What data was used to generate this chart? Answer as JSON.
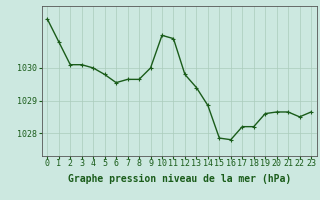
{
  "x": [
    0,
    1,
    2,
    3,
    4,
    5,
    6,
    7,
    8,
    9,
    10,
    11,
    12,
    13,
    14,
    15,
    16,
    17,
    18,
    19,
    20,
    21,
    22,
    23
  ],
  "y": [
    1031.5,
    1030.8,
    1030.1,
    1030.1,
    1030.0,
    1029.8,
    1029.55,
    1029.65,
    1029.65,
    1030.0,
    1031.0,
    1030.9,
    1029.8,
    1029.4,
    1028.85,
    1027.85,
    1027.8,
    1028.2,
    1028.2,
    1028.6,
    1028.65,
    1028.65,
    1028.5,
    1028.65
  ],
  "line_color": "#1a5c1a",
  "marker": "+",
  "marker_size": 3,
  "background_color": "#cce8e0",
  "grid_color": "#aaccbb",
  "xlabel": "Graphe pression niveau de la mer (hPa)",
  "xlabel_fontsize": 7,
  "xlabel_color": "#1a5c1a",
  "ytick_labels": [
    "1028",
    "1029",
    "1030"
  ],
  "ytick_values": [
    1028,
    1029,
    1030
  ],
  "ylim": [
    1027.3,
    1031.9
  ],
  "xlim": [
    -0.5,
    23.5
  ],
  "tick_color": "#1a5c1a",
  "tick_fontsize": 6,
  "line_width": 1.0
}
